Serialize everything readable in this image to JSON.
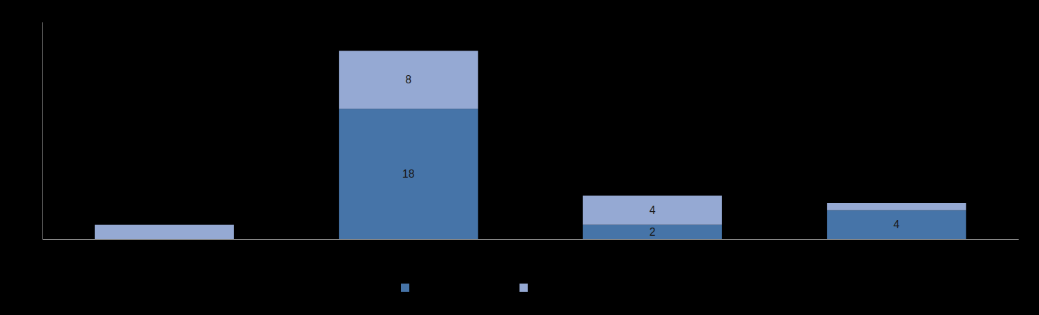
{
  "chart_data": {
    "type": "bar",
    "stacked": true,
    "data_labels": true,
    "tick_labels": false,
    "legend": "bottom",
    "categories": [
      null,
      null,
      null,
      null
    ],
    "ylim": [
      0,
      30
    ],
    "series": [
      {
        "color": "#4674a8",
        "values": [
          null,
          18,
          2,
          4
        ],
        "value_labels": [
          null,
          "18",
          "2",
          "4"
        ]
      },
      {
        "color": "#95a9d3",
        "values": [
          2,
          8,
          4,
          1
        ],
        "value_labels": [
          null,
          "8",
          "4",
          null
        ]
      }
    ]
  }
}
